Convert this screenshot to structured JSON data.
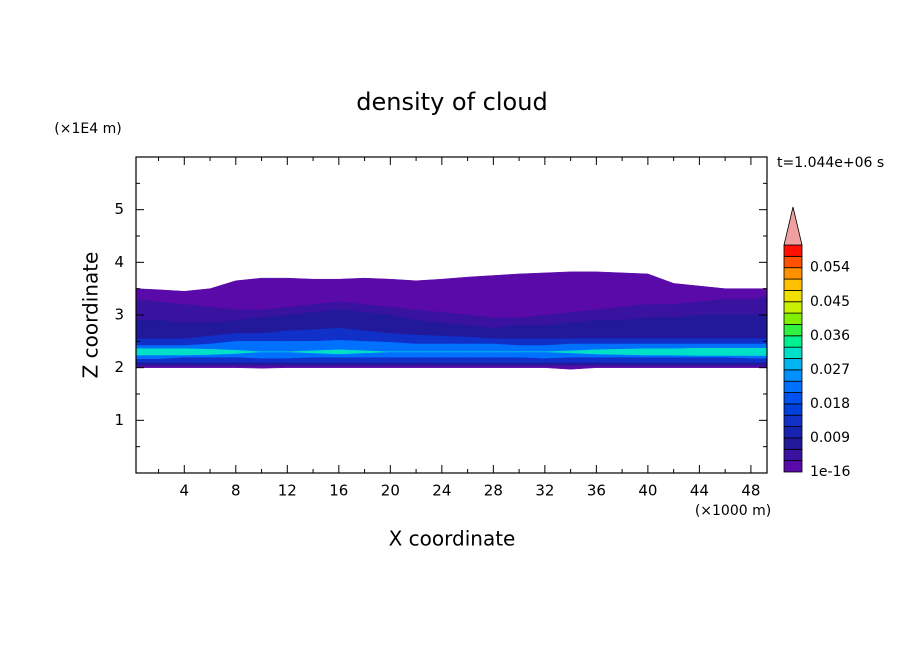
{
  "chart_data": {
    "type": "contour",
    "title": "density of cloud",
    "xlabel": "X coordinate",
    "ylabel": "Z coordinate",
    "x_unit": "(×1000 m)",
    "y_unit": "(×1E4 m)",
    "time_label": "t=1.044e+06 s",
    "xlim": [
      0.25,
      49.25
    ],
    "ylim": [
      0,
      6
    ],
    "xticks": [
      4,
      8,
      12,
      16,
      20,
      24,
      28,
      32,
      36,
      40,
      44,
      48
    ],
    "yticks": [
      1,
      2,
      3,
      4,
      5
    ],
    "xminorticks": [
      2,
      6,
      10,
      14,
      18,
      22,
      26,
      30,
      34,
      38,
      42,
      46
    ],
    "yminorticks": [
      0.5,
      1.5,
      2.5,
      3.5,
      4.5,
      5.5
    ],
    "colorbar": {
      "levels": [
        1e-16,
        0.003,
        0.006,
        0.009,
        0.012,
        0.015,
        0.018,
        0.021,
        0.024,
        0.027,
        0.03,
        0.033,
        0.036,
        0.039,
        0.042,
        0.045,
        0.048,
        0.051,
        0.054,
        0.057,
        0.06
      ],
      "colors": [
        "#5a0aa8",
        "#3a12a0",
        "#22189a",
        "#1822b0",
        "#1030c8",
        "#0040dc",
        "#0052f0",
        "#0070ff",
        "#0090ff",
        "#00b4f0",
        "#00e0c8",
        "#00f090",
        "#30f040",
        "#80f000",
        "#c8f000",
        "#f0e000",
        "#ffc000",
        "#ff9000",
        "#ff5000",
        "#ff1000"
      ],
      "extend_color": "#f0a0a0",
      "ticks": [
        1e-16,
        0.009,
        0.018,
        0.027,
        0.036,
        0.045,
        0.054
      ]
    },
    "field": {
      "x": [
        0.25,
        2,
        4,
        6,
        8,
        10,
        12,
        14,
        16,
        18,
        20,
        22,
        24,
        26,
        28,
        30,
        32,
        34,
        36,
        38,
        40,
        42,
        44,
        46,
        48,
        49.25
      ],
      "layers": [
        {
          "level": 1e-16,
          "top": [
            3.5,
            3.48,
            3.45,
            3.5,
            3.65,
            3.7,
            3.7,
            3.68,
            3.68,
            3.7,
            3.68,
            3.65,
            3.68,
            3.72,
            3.75,
            3.78,
            3.8,
            3.82,
            3.82,
            3.8,
            3.78,
            3.6,
            3.55,
            3.5,
            3.5,
            3.5
          ],
          "bottom": [
            2.0,
            2.0,
            2.0,
            2.0,
            2.0,
            1.99,
            2.0,
            2.0,
            2.0,
            2.0,
            2.0,
            2.0,
            2.0,
            2.0,
            2.0,
            2.0,
            2.0,
            1.97,
            2.0,
            2.0,
            2.0,
            2.0,
            2.0,
            2.0,
            2.0,
            2.0
          ]
        },
        {
          "level": 0.003,
          "top": [
            3.3,
            3.25,
            3.2,
            3.15,
            3.1,
            3.1,
            3.15,
            3.2,
            3.25,
            3.2,
            3.15,
            3.1,
            3.05,
            3.0,
            2.95,
            2.95,
            3.0,
            3.05,
            3.1,
            3.15,
            3.2,
            3.2,
            3.25,
            3.3,
            3.3,
            3.35
          ],
          "bottom": [
            2.03,
            2.03,
            2.03,
            2.03,
            2.03,
            2.03,
            2.03,
            2.03,
            2.03,
            2.03,
            2.03,
            2.03,
            2.03,
            2.03,
            2.03,
            2.03,
            2.03,
            2.03,
            2.03,
            2.03,
            2.03,
            2.03,
            2.03,
            2.03,
            2.03,
            2.03
          ]
        },
        {
          "level": 0.006,
          "top": [
            2.9,
            2.9,
            2.85,
            2.85,
            2.9,
            2.95,
            3.0,
            3.05,
            3.1,
            3.05,
            3.0,
            2.9,
            2.85,
            2.8,
            2.75,
            2.8,
            2.8,
            2.85,
            2.9,
            2.9,
            2.95,
            2.95,
            3.0,
            3.0,
            3.0,
            3.0
          ],
          "bottom": [
            2.06,
            2.06,
            2.06,
            2.06,
            2.06,
            2.06,
            2.06,
            2.06,
            2.06,
            2.06,
            2.06,
            2.06,
            2.06,
            2.06,
            2.06,
            2.06,
            2.06,
            2.06,
            2.06,
            2.06,
            2.06,
            2.06,
            2.06,
            2.06,
            2.06,
            2.06
          ]
        },
        {
          "level": 0.012,
          "top": [
            2.55,
            2.55,
            2.55,
            2.6,
            2.65,
            2.65,
            2.7,
            2.72,
            2.75,
            2.7,
            2.65,
            2.62,
            2.6,
            2.58,
            2.55,
            2.55,
            2.55,
            2.55,
            2.55,
            2.55,
            2.55,
            2.55,
            2.55,
            2.55,
            2.55,
            2.55
          ],
          "bottom": [
            2.1,
            2.1,
            2.1,
            2.1,
            2.1,
            2.1,
            2.1,
            2.1,
            2.1,
            2.1,
            2.1,
            2.1,
            2.1,
            2.1,
            2.1,
            2.1,
            2.1,
            2.1,
            2.1,
            2.1,
            2.1,
            2.1,
            2.1,
            2.1,
            2.1,
            2.1
          ]
        },
        {
          "level": 0.021,
          "top": [
            2.42,
            2.42,
            2.42,
            2.45,
            2.5,
            2.5,
            2.5,
            2.5,
            2.52,
            2.5,
            2.48,
            2.45,
            2.45,
            2.45,
            2.45,
            2.42,
            2.42,
            2.45,
            2.45,
            2.45,
            2.45,
            2.45,
            2.45,
            2.45,
            2.45,
            2.45
          ],
          "bottom": [
            2.17,
            2.17,
            2.2,
            2.2,
            2.2,
            2.18,
            2.18,
            2.2,
            2.2,
            2.2,
            2.2,
            2.2,
            2.2,
            2.2,
            2.2,
            2.2,
            2.18,
            2.2,
            2.2,
            2.2,
            2.2,
            2.2,
            2.2,
            2.2,
            2.18,
            2.18
          ]
        },
        {
          "level": 0.03,
          "top": [
            2.36,
            2.36,
            2.36,
            2.35,
            2.33,
            2.3,
            2.3,
            2.32,
            2.34,
            2.32,
            2.3,
            2.3,
            2.3,
            2.3,
            2.3,
            2.3,
            2.3,
            2.32,
            2.34,
            2.35,
            2.36,
            2.36,
            2.37,
            2.37,
            2.37,
            2.37
          ],
          "bottom": [
            2.24,
            2.24,
            2.24,
            2.25,
            2.27,
            2.3,
            2.3,
            2.28,
            2.26,
            2.28,
            2.3,
            2.3,
            2.3,
            2.3,
            2.3,
            2.3,
            2.3,
            2.28,
            2.26,
            2.25,
            2.24,
            2.24,
            2.23,
            2.23,
            2.23,
            2.23
          ]
        }
      ]
    }
  }
}
